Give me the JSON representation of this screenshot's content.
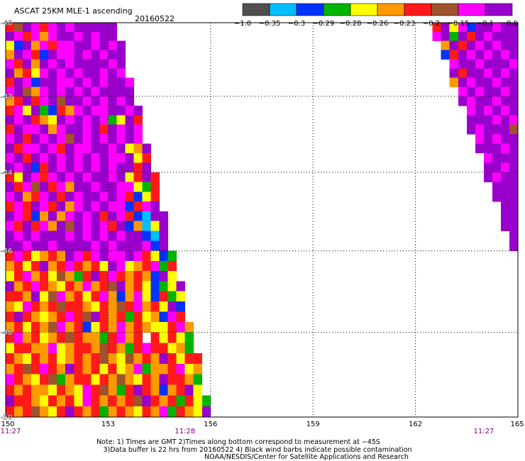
{
  "chart_data": {
    "type": "heatmap",
    "title": "ASCAT 25KM MLE-1 ascending",
    "date": "20160522",
    "xlim": [
      150,
      165
    ],
    "ylim": [
      -50,
      -40
    ],
    "y_scale": "mercator",
    "x_ticks": [
      150,
      153,
      156,
      159,
      162,
      165
    ],
    "y_ticks": [
      -40,
      -42,
      -44,
      -46,
      -48,
      -50
    ],
    "grid": true,
    "color_scale": {
      "labels": [
        "−1.0",
        "−0.35",
        "−0.3",
        "−0.29",
        "−0.28",
        "−0.26",
        "−0.23",
        "−0.2",
        "−0.15",
        "−0.1",
        "0.0"
      ],
      "colors": [
        "#505050",
        "#00bfff",
        "#0033ff",
        "#00b400",
        "#ffff00",
        "#ff9900",
        "#ff1a1a",
        "#a0522d",
        "#ff00ff",
        "#9900cc"
      ]
    },
    "time_labels": [
      {
        "lon": 150,
        "text": "11:27"
      },
      {
        "lon": 155.25,
        "text": "11:28"
      },
      {
        "lon": 164,
        "text": "11:27"
      }
    ],
    "cells": [
      {
        "lat": -40.0,
        "lon": 150,
        "bins": "6798689899999"
      },
      {
        "lat": -40.25,
        "lon": 150,
        "bins": "9868589989899"
      },
      {
        "lat": -40.5,
        "lon": 150,
        "bins": "42958688998989"
      },
      {
        "lat": -40.75,
        "lon": 150,
        "bins": "59862988989899"
      },
      {
        "lat": -41.0,
        "lon": 150,
        "bins": "86959898999989"
      },
      {
        "lat": -41.25,
        "lon": 150,
        "bins": "95648989899898"
      },
      {
        "lat": -41.5,
        "lon": 150,
        "bins": "698299889898998"
      },
      {
        "lat": -41.75,
        "lon": 150,
        "bins": "897589898989999"
      },
      {
        "lat": -42.0,
        "lon": 150,
        "bins": "569689799898989"
      },
      {
        "lat": -42.25,
        "lon": 150,
        "bins": "6849326589889989"
      },
      {
        "lat": -42.5,
        "lon": 150,
        "bins": "9896549898983496"
      },
      {
        "lat": -42.75,
        "lon": 150,
        "bins": "6988958998969898"
      },
      {
        "lat": -43.0,
        "lon": 150,
        "bins": "8969898798989898"
      },
      {
        "lat": -43.25,
        "lon": 150,
        "bins": "96889869889989459"
      },
      {
        "lat": -43.5,
        "lon": 150,
        "bins": "89698989898988946"
      },
      {
        "lat": -43.75,
        "lon": 150,
        "bins": "98926989898989969"
      },
      {
        "lat": -44.0,
        "lon": 150,
        "bins": "649868989899894696"
      },
      {
        "lat": -44.25,
        "lon": 150,
        "bins": "968796859989988436"
      },
      {
        "lat": -44.5,
        "lon": 150,
        "bins": "895689698998986246"
      },
      {
        "lat": -44.75,
        "lon": 150,
        "bins": "686986958989882689"
      },
      {
        "lat": -45.0,
        "lon": 150,
        "bins": "9862595898969862199"
      },
      {
        "lat": -45.25,
        "lon": 150,
        "bins": "8696859798986925149"
      },
      {
        "lat": -45.5,
        "lon": 150,
        "bins": "9898999898989899219"
      },
      {
        "lat": -45.75,
        "lon": 150,
        "bins": "9989989999898999829"
      },
      {
        "lat": -46.0,
        "lon": 150,
        "bins": "68645659868988986423"
      },
      {
        "lat": -46.25,
        "lon": 150,
        "bins": "56469568656498456836"
      },
      {
        "lat": -46.5,
        "lon": 150,
        "bins": "46856475369686565294"
      },
      {
        "lat": -46.75,
        "lon": 150,
        "bins": "956865465856795642349"
      },
      {
        "lat": -47.0,
        "lon": 150,
        "bins": "665947856468525842634"
      },
      {
        "lat": -47.25,
        "lon": 150,
        "bins": "548656766546576856492"
      },
      {
        "lat": -47.5,
        "lon": 150,
        "bins": "696545686796563645286"
      },
      {
        "lat": -47.75,
        "lon": 150,
        "bins": "5646578562465856544685"
      },
      {
        "lat": -48.0,
        "lon": 150,
        "bins": "6856456765536856.64643"
      },
      {
        "lat": -48.25,
        "lon": 150,
        "bins": "4665584566576536866453"
      },
      {
        "lat": -48.5,
        "lon": 150,
        "bins": "65465645656754756596466"
      },
      {
        "lat": -48.75,
        "lon": 150,
        "bins": "56768659656464583556845"
      },
      {
        "lat": -49.0,
        "lon": 150,
        "bins": "86546735664657546596653"
      },
      {
        "lat": -49.25,
        "lon": 150,
        "bins": "65655465486753696525694"
      },
      {
        "lat": -49.5,
        "lon": 150,
        "bins": "966546564865656796563643"
      },
      {
        "lat": -49.75,
        "lon": 150,
        "bins": "656754696563565465836549"
      },
      {
        "lat": -40.0,
        "lon": 162.5,
        "bins": "6948299899"
      },
      {
        "lat": -40.25,
        "lon": 162.5,
        "bins": "8939698999"
      },
      {
        "lat": -40.5,
        "lon": 162.75,
        "bins": "596989899"
      },
      {
        "lat": -40.75,
        "lon": 162.75,
        "bins": "269898989"
      },
      {
        "lat": -41.0,
        "lon": 163,
        "bins": "89989998"
      },
      {
        "lat": -41.25,
        "lon": 163,
        "bins": "96998989"
      },
      {
        "lat": -41.5,
        "lon": 163,
        "bins": "59899899"
      },
      {
        "lat": -41.75,
        "lon": 163.25,
        "bins": "8989989"
      },
      {
        "lat": -42.0,
        "lon": 163.25,
        "bins": "9899899"
      },
      {
        "lat": -42.25,
        "lon": 163.5,
        "bins": "898989"
      },
      {
        "lat": -42.5,
        "lon": 163.5,
        "bins": "999898"
      },
      {
        "lat": -42.75,
        "lon": 163.5,
        "bins": "989997"
      },
      {
        "lat": -43.0,
        "lon": 163.75,
        "bins": "89899"
      },
      {
        "lat": -43.25,
        "lon": 163.75,
        "bins": "99989"
      },
      {
        "lat": -43.5,
        "lon": 164,
        "bins": "8999"
      },
      {
        "lat": -43.75,
        "lon": 164,
        "bins": "9989"
      },
      {
        "lat": -44.0,
        "lon": 164,
        "bins": "9899"
      },
      {
        "lat": -44.25,
        "lon": 164.25,
        "bins": "999"
      },
      {
        "lat": -44.5,
        "lon": 164.25,
        "bins": "999"
      },
      {
        "lat": -44.75,
        "lon": 164.5,
        "bins": "99"
      },
      {
        "lat": -45.0,
        "lon": 164.5,
        "bins": "99"
      },
      {
        "lat": -45.25,
        "lon": 164.5,
        "bins": "99"
      },
      {
        "lat": -45.5,
        "lon": 164.75,
        "bins": "9"
      },
      {
        "lat": -45.75,
        "lon": 164.75,
        "bins": "9"
      }
    ]
  },
  "footer": {
    "notes": [
      "Note: 1) Times are GMT 2)Times along bottom correspond to measurement at −45S",
      "3)Data buffer is 22 hrs from 20160522 4) Black wind barbs indicate possible contamination",
      "NOAA/NESDIS/Center for Satellite Applications and Research"
    ]
  }
}
